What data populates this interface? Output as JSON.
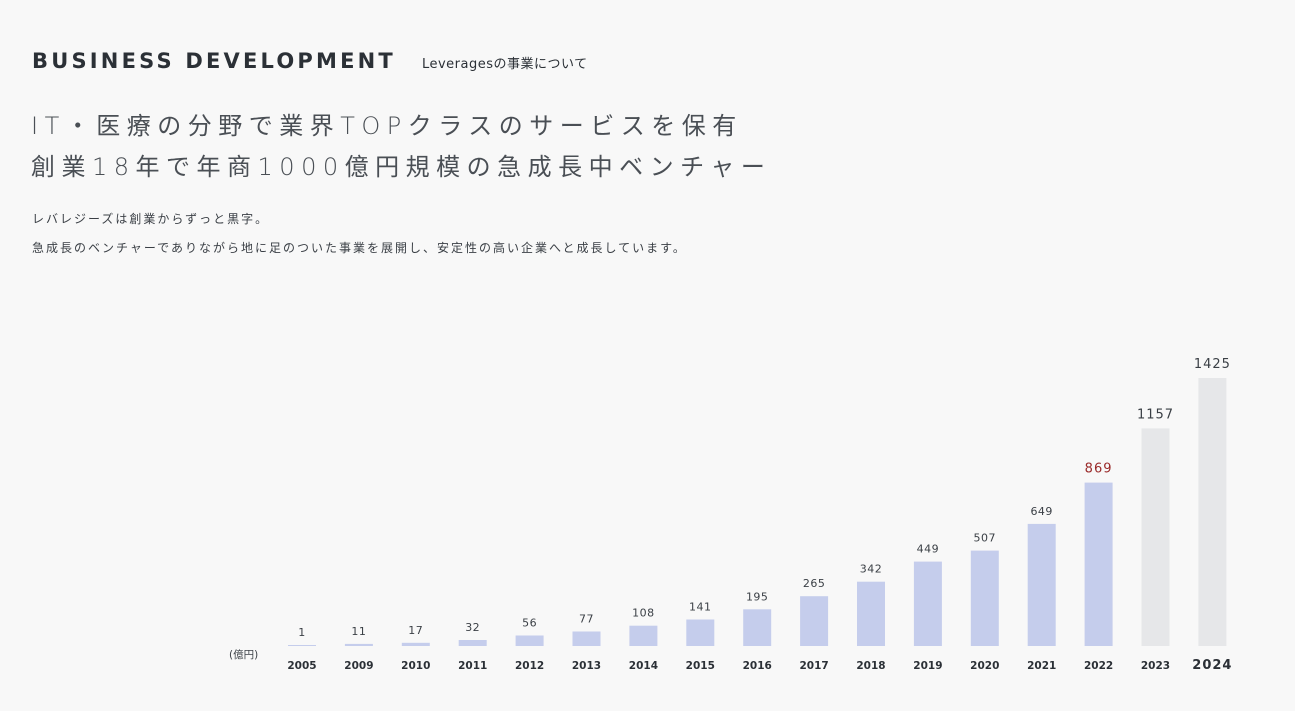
{
  "header": {
    "title": "BUSINESS DEVELOPMENT",
    "subtitle": "Leveragesの事業について"
  },
  "headline": {
    "line1": "IT・医療の分野で業界TOPクラスのサービスを保有",
    "line2": "創業18年で年商1000億円規模の急成長中ベンチャー"
  },
  "description": {
    "line1": "レバレジーズは創業からずっと黒字。",
    "line2": "急成長のベンチャーでありながら地に足のついた事業を展開し、安定性の高い企業へと成長しています。"
  },
  "chart_data": {
    "type": "bar",
    "unit_label": "(億円)",
    "categories": [
      "2005",
      "2009",
      "2010",
      "2011",
      "2012",
      "2013",
      "2014",
      "2015",
      "2016",
      "2017",
      "2018",
      "2019",
      "2020",
      "2021",
      "2022",
      "2023",
      "2024"
    ],
    "values": [
      1,
      11,
      17,
      32,
      56,
      77,
      108,
      141,
      195,
      265,
      342,
      449,
      507,
      649,
      869,
      1157,
      1425
    ],
    "bar_colors": [
      "#c5cdec",
      "#c5cdec",
      "#c5cdec",
      "#c5cdec",
      "#c5cdec",
      "#c5cdec",
      "#c5cdec",
      "#c5cdec",
      "#c5cdec",
      "#c5cdec",
      "#c5cdec",
      "#c5cdec",
      "#c5cdec",
      "#c5cdec",
      "#c5cdec",
      "#e6e7e9",
      "#e6e7e9"
    ],
    "highlight_value_color": "#9a2a2a",
    "highlight_index": 14,
    "current_year_index": 16,
    "ylim": [
      0,
      1425
    ],
    "grid": false
  }
}
